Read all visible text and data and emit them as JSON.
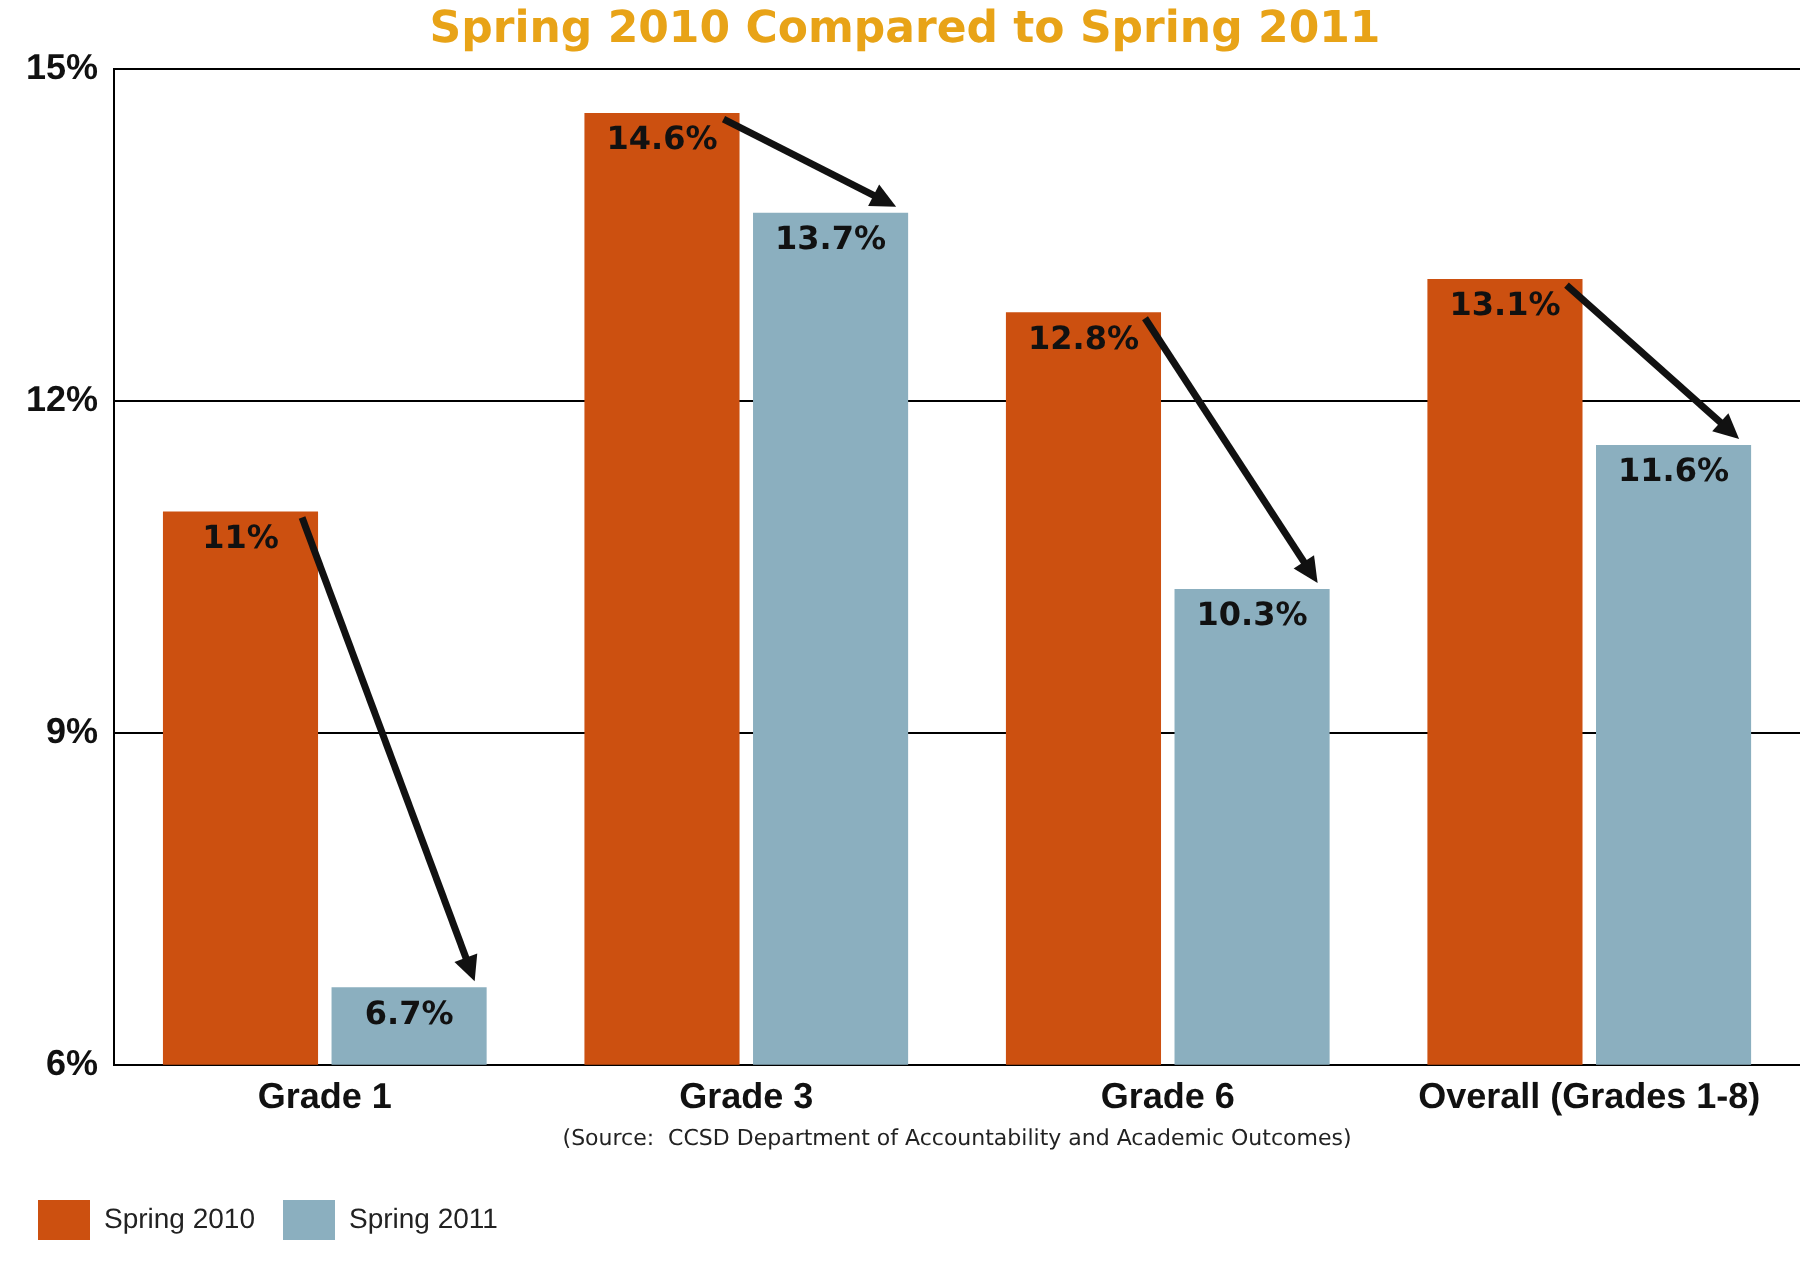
{
  "chart_data": {
    "type": "bar",
    "title": "Spring 2010 Compared to Spring 2011",
    "categories": [
      "Grade 1",
      "Grade 3",
      "Grade 6",
      "Overall (Grades 1-8)"
    ],
    "series": [
      {
        "name": "Spring 2010",
        "color": "#cc5010",
        "values": [
          11,
          14.6,
          12.8,
          13.1
        ],
        "value_labels": [
          "11%",
          "14.6%",
          "12.8%",
          "13.1%"
        ]
      },
      {
        "name": "Spring 2011",
        "color": "#8bafbf",
        "values": [
          6.7,
          13.7,
          10.3,
          11.6
        ],
        "value_labels": [
          "6.7%",
          "13.7%",
          "10.3%",
          "11.6%"
        ]
      }
    ],
    "ylim": [
      6,
      15
    ],
    "yticks": [
      {
        "value": 6,
        "label": "6%"
      },
      {
        "value": 9,
        "label": "9%"
      },
      {
        "value": 12,
        "label": "12%"
      },
      {
        "value": 15,
        "label": "15%"
      }
    ],
    "grid": "y",
    "legend": "bottom left",
    "annotations": [
      "(Source:  CCSD Department of Accountability and Academic Outcomes)"
    ]
  }
}
